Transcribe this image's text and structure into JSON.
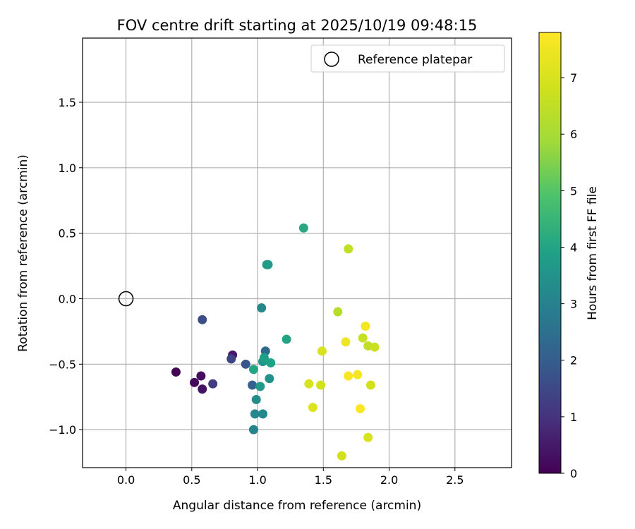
{
  "chart_data": {
    "type": "scatter",
    "title": "FOV centre drift starting at 2025/10/19 09:48:15",
    "xlabel": "Angular distance from reference (arcmin)",
    "ylabel": "Rotation from reference (arcmin)",
    "xlim": [
      -0.33,
      2.93
    ],
    "ylim": [
      -1.29,
      1.99
    ],
    "xticks": [
      0.0,
      0.5,
      1.0,
      1.5,
      2.0,
      2.5
    ],
    "xtick_labels": [
      "0.0",
      "0.5",
      "1.0",
      "1.5",
      "2.0",
      "2.5"
    ],
    "yticks": [
      -1.0,
      -0.5,
      0.0,
      0.5,
      1.0,
      1.5
    ],
    "ytick_labels": [
      "−1.0",
      "−0.5",
      "0.0",
      "0.5",
      "1.0",
      "1.5"
    ],
    "grid": true,
    "legend": {
      "position": "top-right",
      "entries": [
        "Reference platepar"
      ]
    },
    "reference_point": {
      "x": 0.0,
      "y": 0.0
    },
    "colorbar": {
      "label": "Hours from first FF file",
      "colormap": "viridis",
      "range": [
        0,
        7.8
      ],
      "ticks": [
        0,
        1,
        2,
        3,
        4,
        5,
        6,
        7
      ],
      "tick_labels": [
        "0",
        "1",
        "2",
        "3",
        "4",
        "5",
        "6",
        "7"
      ]
    },
    "points": [
      {
        "x": 0.38,
        "y": -0.56,
        "hours": 0.05
      },
      {
        "x": 0.52,
        "y": -0.64,
        "hours": 0.15
      },
      {
        "x": 0.57,
        "y": -0.59,
        "hours": 0.25
      },
      {
        "x": 0.58,
        "y": -0.69,
        "hours": 0.35
      },
      {
        "x": 0.81,
        "y": -0.43,
        "hours": 0.5
      },
      {
        "x": 0.66,
        "y": -0.65,
        "hours": 1.2
      },
      {
        "x": 0.58,
        "y": -0.16,
        "hours": 1.6
      },
      {
        "x": 0.8,
        "y": -0.46,
        "hours": 1.4
      },
      {
        "x": 0.91,
        "y": -0.5,
        "hours": 1.8
      },
      {
        "x": 0.96,
        "y": -0.66,
        "hours": 2.1
      },
      {
        "x": 1.06,
        "y": -0.4,
        "hours": 2.3
      },
      {
        "x": 0.97,
        "y": -1.0,
        "hours": 3.0
      },
      {
        "x": 0.98,
        "y": -0.88,
        "hours": 3.1
      },
      {
        "x": 1.04,
        "y": -0.88,
        "hours": 3.2
      },
      {
        "x": 0.99,
        "y": -0.77,
        "hours": 3.3
      },
      {
        "x": 1.03,
        "y": -0.07,
        "hours": 3.2
      },
      {
        "x": 1.02,
        "y": -0.67,
        "hours": 3.7
      },
      {
        "x": 1.04,
        "y": -0.48,
        "hours": 3.6
      },
      {
        "x": 1.05,
        "y": -0.45,
        "hours": 3.8
      },
      {
        "x": 0.97,
        "y": -0.54,
        "hours": 4.0
      },
      {
        "x": 1.1,
        "y": -0.49,
        "hours": 3.9
      },
      {
        "x": 1.09,
        "y": -0.61,
        "hours": 3.5
      },
      {
        "x": 1.07,
        "y": 0.26,
        "hours": 3.7
      },
      {
        "x": 1.08,
        "y": 0.26,
        "hours": 3.7
      },
      {
        "x": 1.22,
        "y": -0.31,
        "hours": 4.0
      },
      {
        "x": 1.35,
        "y": 0.54,
        "hours": 4.1
      },
      {
        "x": 1.61,
        "y": -0.1,
        "hours": 6.3
      },
      {
        "x": 1.69,
        "y": 0.38,
        "hours": 6.5
      },
      {
        "x": 1.8,
        "y": -0.3,
        "hours": 6.6
      },
      {
        "x": 1.84,
        "y": -0.36,
        "hours": 6.5
      },
      {
        "x": 1.89,
        "y": -0.37,
        "hours": 6.7
      },
      {
        "x": 1.49,
        "y": -0.4,
        "hours": 7.0
      },
      {
        "x": 1.39,
        "y": -0.65,
        "hours": 7.0
      },
      {
        "x": 1.48,
        "y": -0.66,
        "hours": 6.9
      },
      {
        "x": 1.42,
        "y": -0.83,
        "hours": 7.1
      },
      {
        "x": 1.64,
        "y": -1.2,
        "hours": 6.9
      },
      {
        "x": 1.84,
        "y": -1.06,
        "hours": 7.0
      },
      {
        "x": 1.86,
        "y": -0.66,
        "hours": 6.9
      },
      {
        "x": 1.67,
        "y": -0.33,
        "hours": 7.5
      },
      {
        "x": 1.82,
        "y": -0.21,
        "hours": 7.6
      },
      {
        "x": 1.69,
        "y": -0.59,
        "hours": 7.7
      },
      {
        "x": 1.76,
        "y": -0.58,
        "hours": 7.6
      },
      {
        "x": 1.78,
        "y": -0.84,
        "hours": 7.8
      }
    ]
  }
}
